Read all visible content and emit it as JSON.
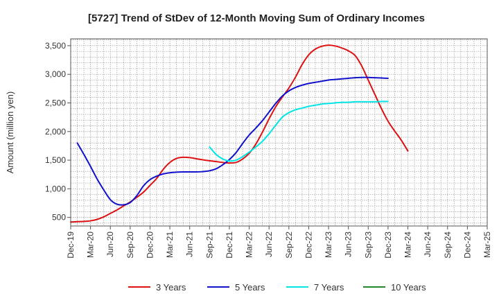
{
  "chart_data": {
    "type": "line",
    "title": "[5727]  Trend of StDev of 12-Month Moving Sum of Ordinary Incomes",
    "ylabel": "Amount (million yen)",
    "xlabel": "",
    "ylim": [
      350,
      3620
    ],
    "yticks": [
      500,
      1000,
      1500,
      2000,
      2500,
      3000,
      3500
    ],
    "ytick_labels": [
      "500",
      "1,000",
      "1,500",
      "2,000",
      "2,500",
      "3,000",
      "3,500"
    ],
    "x_range": [
      0,
      63
    ],
    "x_ticks": [
      {
        "label": "Dec-19",
        "i": 0
      },
      {
        "label": "Mar-20",
        "i": 3
      },
      {
        "label": "Jun-20",
        "i": 6
      },
      {
        "label": "Sep-20",
        "i": 9
      },
      {
        "label": "Dec-20",
        "i": 12
      },
      {
        "label": "Mar-21",
        "i": 15
      },
      {
        "label": "Jun-21",
        "i": 18
      },
      {
        "label": "Sep-21",
        "i": 21
      },
      {
        "label": "Dec-21",
        "i": 24
      },
      {
        "label": "Mar-22",
        "i": 27
      },
      {
        "label": "Jun-22",
        "i": 30
      },
      {
        "label": "Sep-22",
        "i": 33
      },
      {
        "label": "Dec-22",
        "i": 36
      },
      {
        "label": "Mar-23",
        "i": 39
      },
      {
        "label": "Jun-23",
        "i": 42
      },
      {
        "label": "Sep-23",
        "i": 45
      },
      {
        "label": "Dec-23",
        "i": 48
      },
      {
        "label": "Mar-24",
        "i": 51
      },
      {
        "label": "Jun-24",
        "i": 54
      },
      {
        "label": "Sep-24",
        "i": 57
      },
      {
        "label": "Dec-24",
        "i": 60
      },
      {
        "label": "Mar-25",
        "i": 63
      }
    ],
    "grid": true,
    "legend_position": "bottom",
    "series": [
      {
        "name": "3 Years",
        "color": "#dd1111",
        "points": [
          [
            0,
            420
          ],
          [
            1,
            425
          ],
          [
            2,
            430
          ],
          [
            3,
            440
          ],
          [
            4,
            465
          ],
          [
            5,
            510
          ],
          [
            6,
            570
          ],
          [
            7,
            630
          ],
          [
            8,
            700
          ],
          [
            9,
            770
          ],
          [
            10,
            850
          ],
          [
            11,
            940
          ],
          [
            12,
            1060
          ],
          [
            13,
            1180
          ],
          [
            14,
            1340
          ],
          [
            15,
            1460
          ],
          [
            16,
            1530
          ],
          [
            17,
            1550
          ],
          [
            18,
            1545
          ],
          [
            19,
            1525
          ],
          [
            20,
            1505
          ],
          [
            21,
            1490
          ],
          [
            22,
            1475
          ],
          [
            23,
            1460
          ],
          [
            24,
            1450
          ],
          [
            25,
            1460
          ],
          [
            26,
            1520
          ],
          [
            27,
            1620
          ],
          [
            28,
            1780
          ],
          [
            29,
            1990
          ],
          [
            30,
            2220
          ],
          [
            31,
            2430
          ],
          [
            32,
            2600
          ],
          [
            33,
            2760
          ],
          [
            34,
            2950
          ],
          [
            35,
            3170
          ],
          [
            36,
            3340
          ],
          [
            37,
            3440
          ],
          [
            38,
            3490
          ],
          [
            39,
            3510
          ],
          [
            40,
            3495
          ],
          [
            41,
            3460
          ],
          [
            42,
            3410
          ],
          [
            43,
            3330
          ],
          [
            44,
            3150
          ],
          [
            45,
            2900
          ],
          [
            46,
            2650
          ],
          [
            47,
            2400
          ],
          [
            48,
            2180
          ],
          [
            49,
            2010
          ],
          [
            50,
            1850
          ],
          [
            51,
            1660
          ]
        ]
      },
      {
        "name": "5 Years",
        "color": "#1111cc",
        "points": [
          [
            1,
            1800
          ],
          [
            2,
            1600
          ],
          [
            3,
            1390
          ],
          [
            4,
            1170
          ],
          [
            5,
            980
          ],
          [
            6,
            810
          ],
          [
            7,
            730
          ],
          [
            8,
            720
          ],
          [
            9,
            760
          ],
          [
            10,
            880
          ],
          [
            11,
            1050
          ],
          [
            12,
            1160
          ],
          [
            13,
            1220
          ],
          [
            14,
            1260
          ],
          [
            15,
            1280
          ],
          [
            16,
            1290
          ],
          [
            17,
            1295
          ],
          [
            18,
            1295
          ],
          [
            19,
            1295
          ],
          [
            20,
            1300
          ],
          [
            21,
            1315
          ],
          [
            22,
            1350
          ],
          [
            23,
            1420
          ],
          [
            24,
            1510
          ],
          [
            25,
            1630
          ],
          [
            26,
            1790
          ],
          [
            27,
            1940
          ],
          [
            28,
            2060
          ],
          [
            29,
            2190
          ],
          [
            30,
            2340
          ],
          [
            31,
            2490
          ],
          [
            32,
            2620
          ],
          [
            33,
            2710
          ],
          [
            34,
            2770
          ],
          [
            35,
            2810
          ],
          [
            36,
            2840
          ],
          [
            37,
            2860
          ],
          [
            38,
            2880
          ],
          [
            39,
            2900
          ],
          [
            40,
            2910
          ],
          [
            41,
            2920
          ],
          [
            42,
            2930
          ],
          [
            43,
            2940
          ],
          [
            44,
            2945
          ],
          [
            45,
            2945
          ],
          [
            46,
            2940
          ],
          [
            47,
            2935
          ],
          [
            48,
            2930
          ]
        ]
      },
      {
        "name": "7 Years",
        "color": "#00e5e5",
        "points": [
          [
            21,
            1730
          ],
          [
            22,
            1600
          ],
          [
            23,
            1520
          ],
          [
            24,
            1485
          ],
          [
            25,
            1500
          ],
          [
            26,
            1560
          ],
          [
            27,
            1640
          ],
          [
            28,
            1730
          ],
          [
            29,
            1830
          ],
          [
            30,
            1960
          ],
          [
            31,
            2110
          ],
          [
            32,
            2250
          ],
          [
            33,
            2330
          ],
          [
            34,
            2380
          ],
          [
            35,
            2410
          ],
          [
            36,
            2440
          ],
          [
            37,
            2460
          ],
          [
            38,
            2480
          ],
          [
            39,
            2490
          ],
          [
            40,
            2500
          ],
          [
            41,
            2510
          ],
          [
            42,
            2510
          ],
          [
            43,
            2520
          ],
          [
            44,
            2520
          ],
          [
            45,
            2520
          ],
          [
            46,
            2520
          ],
          [
            47,
            2525
          ],
          [
            48,
            2525
          ]
        ]
      },
      {
        "name": "10 Years",
        "color": "#22882a",
        "points": []
      }
    ]
  }
}
